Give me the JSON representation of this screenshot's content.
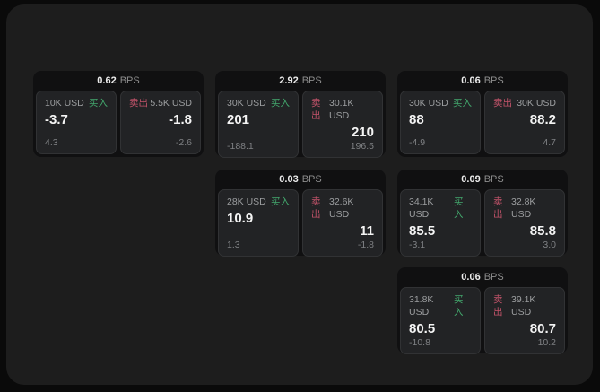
{
  "labels": {
    "bps_unit": "BPS",
    "buy": "买入",
    "sell": "卖出"
  },
  "colors": {
    "background": "#0a0a0a",
    "panel": "#1d1d1d",
    "card": "#101011",
    "tile": "#222325",
    "buy_green": "#43a86d",
    "sell_red": "#c2536a"
  },
  "cards": [
    {
      "bps": "0.62",
      "buy": {
        "amount": "10K USD",
        "value": "-3.7",
        "delta": "4.3"
      },
      "sell": {
        "amount": "5.5K USD",
        "value": "-1.8",
        "delta": "-2.6"
      }
    },
    {
      "bps": "2.92",
      "buy": {
        "amount": "30K USD",
        "value": "201",
        "delta": "-188.1"
      },
      "sell": {
        "amount": "30.1K USD",
        "value": "210",
        "delta": "196.5"
      }
    },
    {
      "bps": "0.06",
      "buy": {
        "amount": "30K USD",
        "value": "88",
        "delta": "-4.9"
      },
      "sell": {
        "amount": "30K USD",
        "value": "88.2",
        "delta": "4.7"
      }
    },
    {
      "bps": "0.03",
      "buy": {
        "amount": "28K USD",
        "value": "10.9",
        "delta": "1.3"
      },
      "sell": {
        "amount": "32.6K USD",
        "value": "11",
        "delta": "-1.8"
      }
    },
    {
      "bps": "0.09",
      "buy": {
        "amount": "34.1K USD",
        "value": "85.5",
        "delta": "-3.1"
      },
      "sell": {
        "amount": "32.8K USD",
        "value": "85.8",
        "delta": "3.0"
      }
    },
    {
      "bps": "0.06",
      "buy": {
        "amount": "31.8K USD",
        "value": "80.5",
        "delta": "-10.8"
      },
      "sell": {
        "amount": "39.1K USD",
        "value": "80.7",
        "delta": "10.2"
      }
    }
  ]
}
